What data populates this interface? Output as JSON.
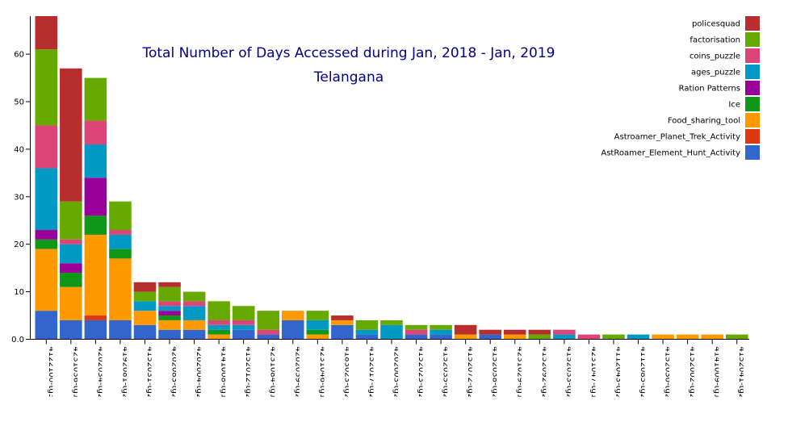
{
  "chart_data": {
    "type": "bar",
    "stacked": true,
    "title": "Total Number of Days Accessed during Jan, 2018 - Jan, 2019",
    "subtitle": "Telangana",
    "xlabel": "",
    "ylabel": "",
    "ylim": [
      0,
      68
    ],
    "yticks": [
      "0.0",
      "10",
      "20",
      "30",
      "40",
      "50",
      "60"
    ],
    "grid": false,
    "legend_position": "top-right",
    "categories": [
      "4122100-tg306",
      "4231036-tg136",
      "4202034-tg234",
      "4192081-tg281",
      "4152031-tg231",
      "4202083-tg283",
      "4202004-tg204",
      "4141008-tg108",
      "4152012-tg212",
      "4231084-tg184",
      "4202059-tg259",
      "4231046-tg146",
      "4183023-tg23",
      "4152017-tg217",
      "4202003-tg203",
      "4152023-tg223",
      "4152035-tg235",
      "4152072-tg272",
      "4152038-tg238",
      "4231029-tg129",
      "4152092-tg292",
      "4152033-tg233",
      "4231047-tg147",
      "4112043-tg243",
      "4112085-tg285",
      "4152030-tg230",
      "4152002-tg202",
      "4141009-tg109",
      "4152041-tg241"
    ],
    "series": [
      {
        "name": "AstRoamer_Element_Hunt_Activity",
        "color": "#3366cc",
        "values": [
          6,
          4,
          4,
          4,
          3,
          2,
          2,
          0,
          2,
          1,
          4,
          0,
          3,
          1,
          0,
          1,
          1,
          0,
          1,
          0,
          0,
          0,
          0,
          0,
          0,
          0,
          0,
          0,
          0
        ]
      },
      {
        "name": "Astroamer_Planet_Trek_Activity",
        "color": "#dc3912",
        "values": [
          0,
          0,
          1,
          0,
          0,
          0,
          0,
          0,
          0,
          0,
          0,
          0,
          0,
          0,
          0,
          0,
          0,
          0,
          0,
          0,
          0,
          0,
          0,
          0,
          0,
          0,
          0,
          0,
          0
        ]
      },
      {
        "name": "Food_sharing_tool",
        "color": "#ff9900",
        "values": [
          13,
          7,
          17,
          13,
          3,
          2,
          2,
          1,
          0,
          0,
          2,
          1,
          1,
          0,
          0,
          0,
          0,
          1,
          0,
          1,
          0,
          0,
          0,
          0,
          0,
          1,
          1,
          1,
          0
        ]
      },
      {
        "name": "Ice",
        "color": "#109618",
        "values": [
          2,
          3,
          4,
          2,
          0,
          1,
          0,
          1,
          0,
          0,
          0,
          1,
          0,
          0,
          0,
          0,
          0,
          0,
          0,
          0,
          0,
          0,
          0,
          0,
          0,
          0,
          0,
          0,
          0
        ]
      },
      {
        "name": "Ration Patterns",
        "color": "#990099",
        "values": [
          2,
          2,
          8,
          0,
          0,
          1,
          0,
          0,
          0,
          0,
          0,
          0,
          0,
          0,
          0,
          0,
          0,
          0,
          0,
          0,
          0,
          0,
          0,
          0,
          0,
          0,
          0,
          0,
          0
        ]
      },
      {
        "name": "ages_puzzle",
        "color": "#0099c6",
        "values": [
          13,
          4,
          7,
          3,
          2,
          1,
          3,
          1,
          1,
          0,
          0,
          2,
          0,
          1,
          3,
          0,
          1,
          0,
          0,
          0,
          0,
          1,
          0,
          0,
          1,
          0,
          0,
          0,
          0
        ]
      },
      {
        "name": "coins_puzzle",
        "color": "#dd4477",
        "values": [
          9,
          1,
          5,
          1,
          0,
          1,
          1,
          1,
          1,
          1,
          0,
          0,
          0,
          0,
          0,
          1,
          0,
          0,
          0,
          0,
          0,
          1,
          1,
          0,
          0,
          0,
          0,
          0,
          0
        ]
      },
      {
        "name": "factorisation",
        "color": "#66aa00",
        "values": [
          16,
          8,
          9,
          6,
          2,
          3,
          2,
          4,
          3,
          4,
          0,
          2,
          0,
          2,
          1,
          1,
          1,
          0,
          0,
          0,
          1,
          0,
          0,
          1,
          0,
          0,
          0,
          0,
          1
        ]
      },
      {
        "name": "policesquad",
        "color": "#b82e2e",
        "values": [
          7,
          28,
          0,
          0,
          2,
          1,
          0,
          0,
          0,
          0,
          0,
          0,
          1,
          0,
          0,
          0,
          0,
          2,
          1,
          1,
          1,
          0,
          0,
          0,
          0,
          0,
          0,
          0,
          0
        ]
      }
    ]
  }
}
